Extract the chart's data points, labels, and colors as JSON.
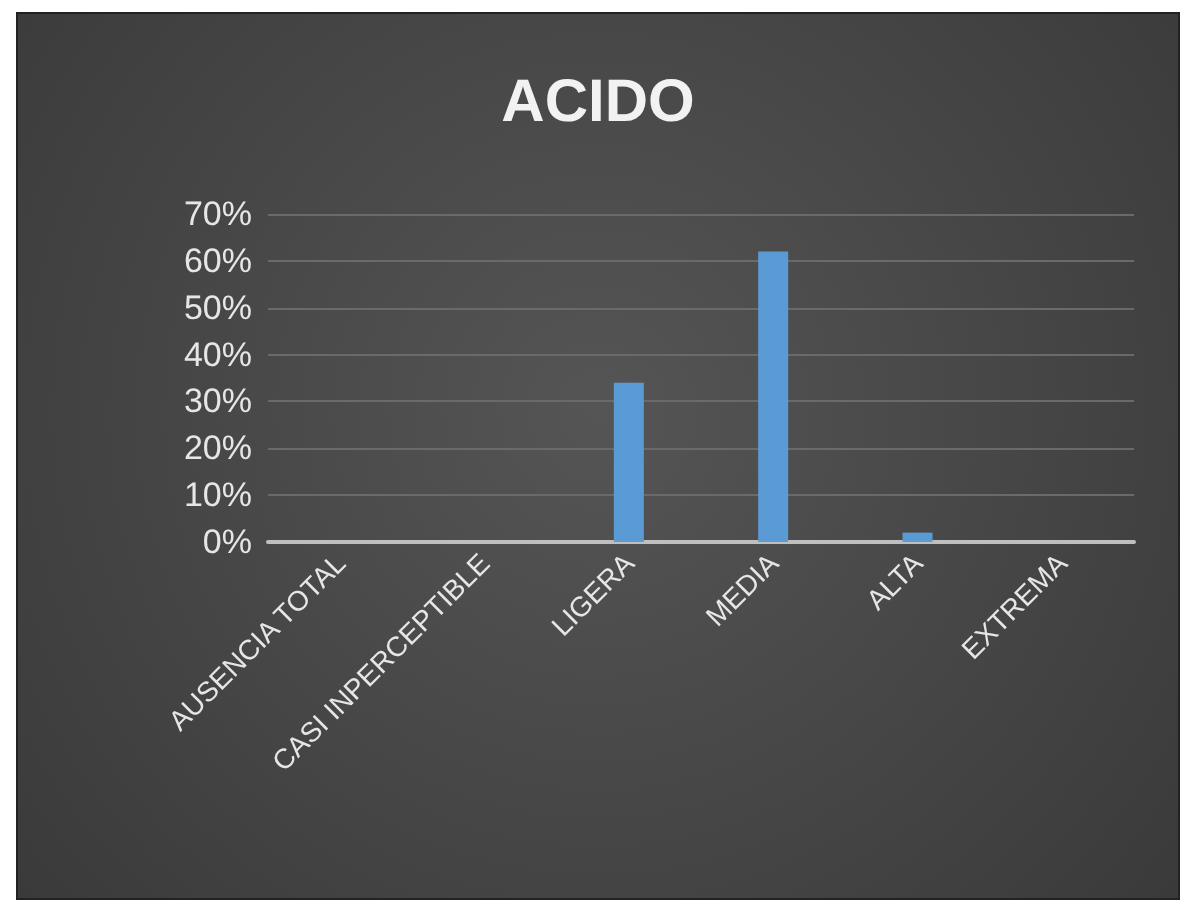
{
  "chart_data": {
    "type": "bar",
    "title": "ACIDO",
    "categories": [
      "AUSENCIA TOTAL",
      "CASI INPERCEPTIBLE",
      "LIGERA",
      "MEDIA",
      "ALTA",
      "EXTREMA"
    ],
    "values": [
      0,
      0,
      34,
      62,
      2,
      0
    ],
    "color": "#5b9bd5",
    "ylim": [
      0,
      70
    ],
    "yticks": [
      {
        "value": 0,
        "label": "0%"
      },
      {
        "value": 10,
        "label": "10%"
      },
      {
        "value": 20,
        "label": "20%"
      },
      {
        "value": 30,
        "label": "30%"
      },
      {
        "value": 40,
        "label": "40%"
      },
      {
        "value": 50,
        "label": "50%"
      },
      {
        "value": 60,
        "label": "60%"
      },
      {
        "value": 70,
        "label": "70%"
      }
    ],
    "grid": "y"
  }
}
